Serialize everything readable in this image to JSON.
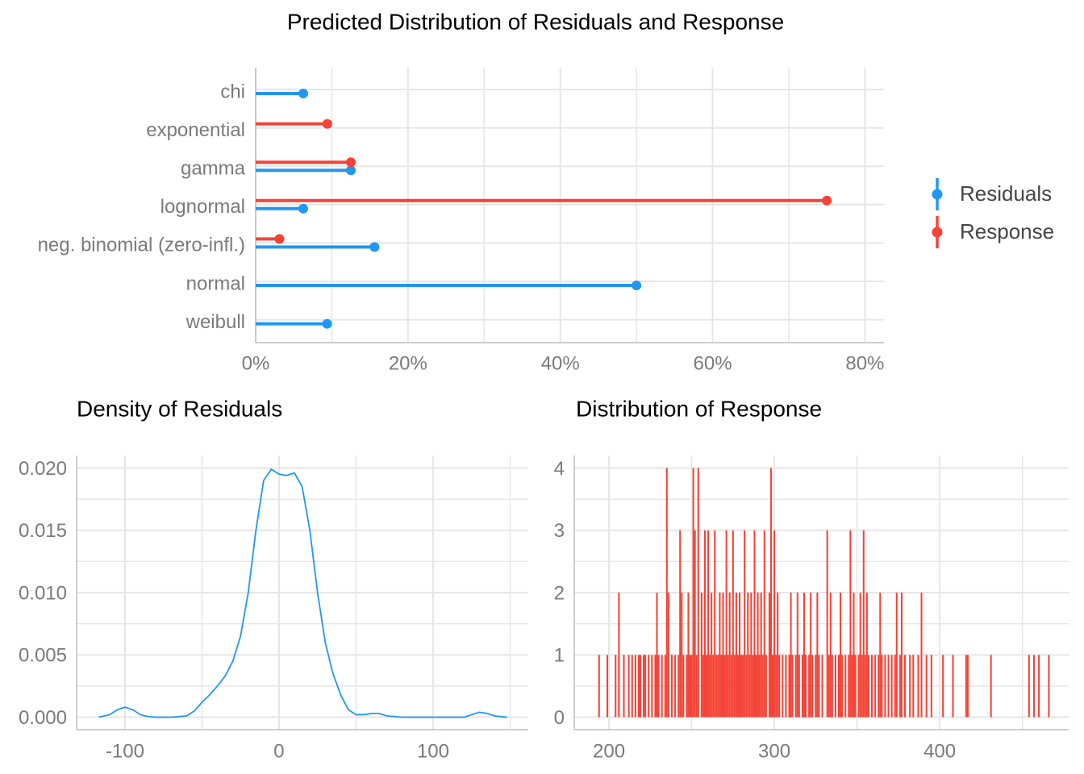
{
  "chart_data": [
    {
      "type": "lollipop",
      "title": "Predicted Distribution of Residuals and Response",
      "categories": [
        "chi",
        "exponential",
        "gamma",
        "lognormal",
        "neg. binomial (zero-infl.)",
        "normal",
        "weibull"
      ],
      "series": [
        {
          "name": "Residuals",
          "color": "#2196F3",
          "values": [
            6.25,
            null,
            12.5,
            6.25,
            15.6,
            50,
            9.375
          ]
        },
        {
          "name": "Response",
          "color": "#F44336",
          "values": [
            null,
            9.4,
            12.5,
            75,
            3.125,
            null,
            null
          ]
        }
      ],
      "xlim": [
        0,
        82.5
      ],
      "xticks": [
        {
          "value": 0,
          "label": "0%"
        },
        {
          "value": 20,
          "label": "20%"
        },
        {
          "value": 40,
          "label": "40%"
        },
        {
          "value": 60,
          "label": "60%"
        },
        {
          "value": 80,
          "label": "80%"
        }
      ],
      "grid": true,
      "legend": "right"
    },
    {
      "type": "line",
      "title": "Density of Residuals",
      "color": "#2196F3",
      "x": [
        -117,
        -110,
        -105,
        -100,
        -95,
        -90,
        -85,
        -80,
        -70,
        -60,
        -55,
        -50,
        -45,
        -40,
        -35,
        -30,
        -25,
        -20,
        -15,
        -10,
        -5,
        0,
        5,
        10,
        15,
        20,
        25,
        30,
        35,
        40,
        45,
        50,
        55,
        60,
        65,
        70,
        80,
        100,
        120,
        125,
        130,
        135,
        140,
        148
      ],
      "y": [
        0,
        0.0002,
        0.0006,
        0.0008,
        0.0006,
        0.0002,
        5e-05,
        0,
        0,
        0.0001,
        0.0005,
        0.0012,
        0.0018,
        0.0025,
        0.0033,
        0.0045,
        0.0065,
        0.01,
        0.015,
        0.019,
        0.0199,
        0.0195,
        0.0194,
        0.0196,
        0.0185,
        0.015,
        0.01,
        0.006,
        0.0035,
        0.0018,
        0.0006,
        0.0002,
        0.0002,
        0.0003,
        0.0003,
        0.0001,
        0,
        0,
        0,
        0.0002,
        0.0004,
        0.0003,
        0.0001,
        0
      ],
      "xlim": [
        -131.4,
        161.8
      ],
      "xticks": [
        -100,
        0,
        100
      ],
      "ylim": [
        -0.001,
        0.021
      ],
      "yticks": [
        {
          "value": 0,
          "label": "0.000"
        },
        {
          "value": 0.005,
          "label": "0.005"
        },
        {
          "value": 0.01,
          "label": "0.010"
        },
        {
          "value": 0.015,
          "label": "0.015"
        },
        {
          "value": 0.02,
          "label": "0.020"
        }
      ],
      "grid": true
    },
    {
      "type": "bar",
      "title": "Distribution of Response",
      "color": "#F44336",
      "x": [
        194,
        199,
        204,
        209,
        212,
        214,
        216,
        218,
        219,
        221,
        222,
        224,
        226,
        228,
        230,
        232,
        234,
        238,
        240,
        242,
        245,
        247,
        249,
        250,
        253,
        257,
        259,
        261,
        263,
        265,
        266,
        268,
        270,
        272,
        274,
        276,
        278,
        280,
        281,
        283,
        285,
        287,
        289,
        291,
        293,
        295,
        299,
        301,
        303,
        305,
        307,
        309,
        311,
        313,
        315,
        317,
        319,
        321,
        323,
        325,
        327,
        329,
        333,
        335,
        337,
        339,
        341,
        343,
        345,
        347,
        349,
        351,
        353,
        355,
        357,
        359,
        361,
        363,
        365,
        367,
        369,
        371,
        373,
        376,
        379,
        382,
        384,
        387,
        392,
        395,
        402,
        408,
        416,
        417,
        431,
        454,
        457,
        460,
        466,
        206,
        229,
        236,
        244,
        248,
        256,
        262,
        267,
        269,
        273,
        277,
        279,
        284,
        286,
        290,
        292,
        297,
        302,
        310,
        314,
        318,
        322,
        326,
        334,
        340,
        348,
        352,
        356,
        364,
        374,
        377,
        389,
        243,
        252,
        258,
        260,
        264,
        271,
        275,
        282,
        288,
        294,
        300,
        332,
        346,
        354,
        235,
        251,
        254,
        298
      ],
      "values": [
        1,
        1,
        1,
        1,
        1,
        1,
        1,
        1,
        1,
        1,
        1,
        1,
        1,
        1,
        1,
        1,
        1,
        1,
        1,
        1,
        1,
        1,
        1,
        1,
        1,
        1,
        1,
        1,
        1,
        1,
        1,
        1,
        1,
        1,
        1,
        1,
        1,
        1,
        1,
        1,
        1,
        1,
        1,
        1,
        1,
        1,
        1,
        1,
        1,
        1,
        1,
        1,
        1,
        1,
        1,
        1,
        1,
        1,
        1,
        1,
        1,
        1,
        1,
        1,
        1,
        1,
        1,
        1,
        1,
        1,
        1,
        1,
        1,
        1,
        1,
        1,
        1,
        1,
        1,
        1,
        1,
        1,
        1,
        1,
        1,
        1,
        1,
        1,
        1,
        1,
        1,
        1,
        1,
        1,
        1,
        1,
        1,
        1,
        1,
        2,
        2,
        2,
        2,
        2,
        2,
        2,
        2,
        2,
        2,
        2,
        2,
        2,
        2,
        2,
        2,
        2,
        2,
        2,
        2,
        2,
        2,
        2,
        2,
        2,
        2,
        2,
        2,
        2,
        2,
        2,
        2,
        3,
        3,
        3,
        3,
        3,
        3,
        3,
        3,
        3,
        3,
        3,
        3,
        3,
        3,
        4,
        4,
        4,
        4
      ],
      "xlim": [
        179,
        478
      ],
      "xticks": [
        200,
        300,
        400
      ],
      "ylim": [
        -0.2,
        4.2
      ],
      "yticks": [
        0,
        1,
        2,
        3,
        4
      ],
      "grid": true
    }
  ]
}
